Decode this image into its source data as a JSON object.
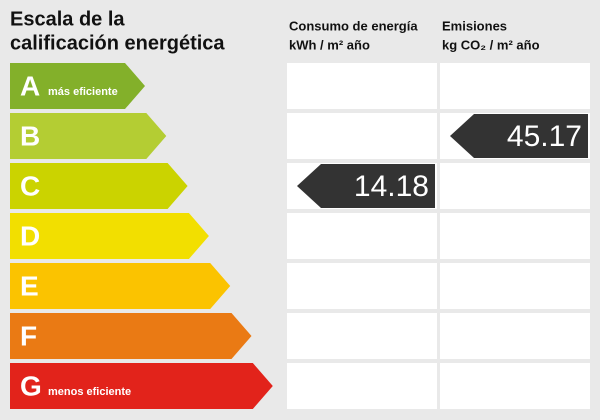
{
  "title_lines": [
    "Escala de la",
    "calificación energética"
  ],
  "columns": [
    {
      "heading": "Consumo de energía",
      "unit": "kWh / m² año",
      "grade": "C",
      "value": 14.18
    },
    {
      "heading": "Emisiones",
      "unit": "kg CO₂ / m² año",
      "grade": "B",
      "value": 45.17
    }
  ],
  "grades": [
    {
      "letter": "A",
      "color": "#83b02a",
      "note": "más eficiente"
    },
    {
      "letter": "B",
      "color": "#b4cd33"
    },
    {
      "letter": "C",
      "color": "#cbd300"
    },
    {
      "letter": "D",
      "color": "#f2df00"
    },
    {
      "letter": "E",
      "color": "#fbc300"
    },
    {
      "letter": "F",
      "color": "#ea7a14"
    },
    {
      "letter": "G",
      "color": "#e2231b",
      "note": "menos eficiente"
    }
  ]
}
